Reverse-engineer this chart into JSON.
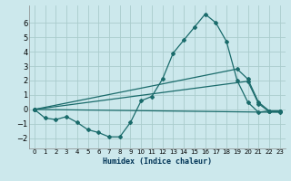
{
  "xlabel": "Humidex (Indice chaleur)",
  "ylabel": "",
  "bg_color": "#cce8ec",
  "grid_color": "#aacccc",
  "line_color": "#1a6b6b",
  "xlim": [
    -0.5,
    23.5
  ],
  "ylim": [
    -2.7,
    7.2
  ],
  "yticks": [
    -2,
    -1,
    0,
    1,
    2,
    3,
    4,
    5,
    6
  ],
  "xticks": [
    0,
    1,
    2,
    3,
    4,
    5,
    6,
    7,
    8,
    9,
    10,
    11,
    12,
    13,
    14,
    15,
    16,
    17,
    18,
    19,
    20,
    21,
    22,
    23
  ],
  "line1_x": [
    0,
    1,
    2,
    3,
    4,
    5,
    6,
    7,
    8,
    9,
    10,
    11,
    12,
    13,
    14,
    15,
    16,
    17,
    18,
    19,
    20,
    21,
    22,
    23
  ],
  "line1_y": [
    0.0,
    -0.6,
    -0.7,
    -0.5,
    -0.9,
    -1.4,
    -1.6,
    -1.9,
    -1.9,
    -0.9,
    0.6,
    0.9,
    2.1,
    3.9,
    4.8,
    5.7,
    6.6,
    6.0,
    4.7,
    2.0,
    0.5,
    -0.2,
    -0.1,
    -0.1
  ],
  "line2_x": [
    0,
    19,
    20,
    21,
    22,
    23
  ],
  "line2_y": [
    0.0,
    2.8,
    2.1,
    0.5,
    -0.1,
    -0.1
  ],
  "line3_x": [
    0,
    20,
    21,
    22,
    23
  ],
  "line3_y": [
    0.0,
    1.95,
    0.4,
    -0.15,
    -0.15
  ],
  "line4_x": [
    0,
    23
  ],
  "line4_y": [
    0.0,
    -0.2
  ],
  "marker": "D",
  "markersize": 2,
  "linewidth": 0.9
}
